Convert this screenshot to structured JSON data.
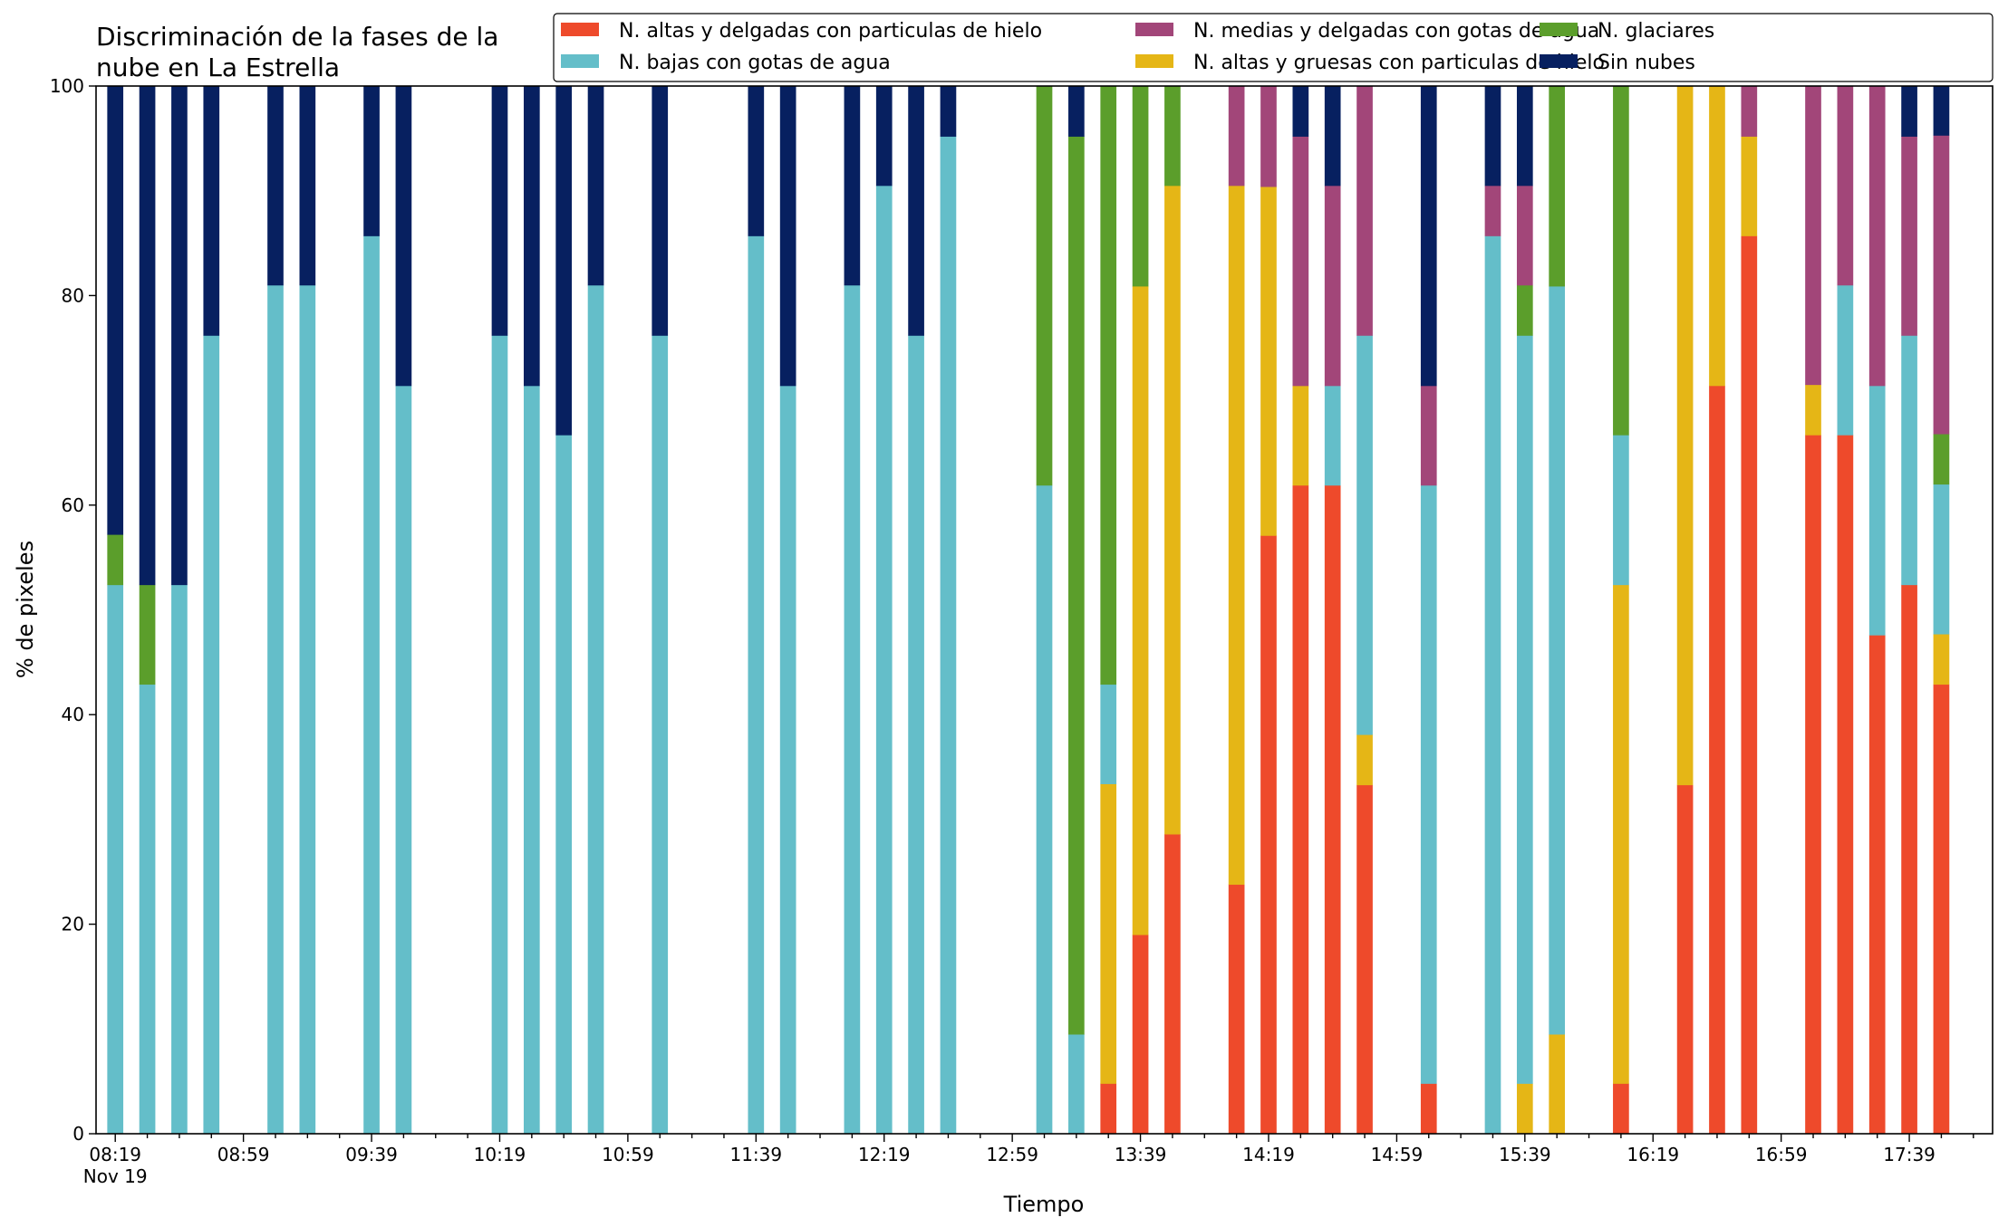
{
  "chart_data": {
    "type": "bar",
    "stacked": true,
    "title_lines": [
      "Discriminación de la fases de la",
      "nube en La Estrella"
    ],
    "xlabel": "Tiempo",
    "ylabel": "% de pixeles",
    "ylim": [
      0,
      100
    ],
    "yticks": [
      0,
      20,
      40,
      60,
      80,
      100
    ],
    "grid": false,
    "legend_position": "top-right",
    "xlim_slots": [
      -0.6,
      58.6
    ],
    "slot_minutes": 10,
    "x_tick_labels": [
      "08:19",
      "08:59",
      "09:39",
      "10:19",
      "10:59",
      "11:39",
      "12:19",
      "12:59",
      "13:39",
      "14:19",
      "14:59",
      "15:39",
      "16:19",
      "16:59",
      "17:39"
    ],
    "x_tick_slots": [
      0,
      4,
      8,
      12,
      16,
      20,
      24,
      28,
      32,
      36,
      40,
      44,
      48,
      52,
      56
    ],
    "x_tick_sublabel": "Nov 19",
    "series": [
      {
        "name": "N. altas y delgadas con particulas de hielo",
        "color": "#ee4a2b"
      },
      {
        "name": "N. altas y gruesas con particulas de hielo",
        "color": "#e5b616"
      },
      {
        "name": "N. bajas con gotas de agua",
        "color": "#64bec9"
      },
      {
        "name": "N. glaciares",
        "color": "#5b9e2b"
      },
      {
        "name": "N. medias y delgadas con gotas de agua",
        "color": "#a24679"
      },
      {
        "name": "Sin nubes",
        "color": "#072060"
      }
    ],
    "legend_order": [
      0,
      2,
      4,
      1,
      3,
      5
    ],
    "bars": [
      {
        "time": "08:19",
        "values": [
          0,
          0,
          52.4,
          4.8,
          0,
          42.8
        ]
      },
      {
        "time": "08:29",
        "values": [
          0,
          0,
          42.9,
          9.5,
          0,
          47.6
        ]
      },
      {
        "time": "08:39",
        "values": [
          0,
          0,
          52.4,
          0,
          0,
          47.6
        ]
      },
      {
        "time": "08:49",
        "values": [
          0,
          0,
          76.2,
          0,
          0,
          23.8
        ]
      },
      {
        "time": "09:09",
        "values": [
          0,
          0,
          81.0,
          0,
          0,
          19.0
        ]
      },
      {
        "time": "09:19",
        "values": [
          0,
          0,
          81.0,
          0,
          0,
          19.0
        ]
      },
      {
        "time": "09:39",
        "values": [
          0,
          0,
          85.7,
          0,
          0,
          14.3
        ]
      },
      {
        "time": "09:49",
        "values": [
          0,
          0,
          71.4,
          0,
          0,
          28.6
        ]
      },
      {
        "time": "10:19",
        "values": [
          0,
          0,
          76.2,
          0,
          0,
          23.8
        ]
      },
      {
        "time": "10:29",
        "values": [
          0,
          0,
          71.4,
          0,
          0,
          28.6
        ]
      },
      {
        "time": "10:39",
        "values": [
          0,
          0,
          66.7,
          0,
          0,
          33.3
        ]
      },
      {
        "time": "10:49",
        "values": [
          0,
          0,
          81.0,
          0,
          0,
          19.0
        ]
      },
      {
        "time": "11:09",
        "values": [
          0,
          0,
          76.2,
          0,
          0,
          23.8
        ]
      },
      {
        "time": "11:39",
        "values": [
          0,
          0,
          85.7,
          0,
          0,
          14.3
        ]
      },
      {
        "time": "11:49",
        "values": [
          0,
          0,
          71.4,
          0,
          0,
          28.6
        ]
      },
      {
        "time": "12:09",
        "values": [
          0,
          0,
          81.0,
          0,
          0,
          19.0
        ]
      },
      {
        "time": "12:19",
        "values": [
          0,
          0,
          90.5,
          0,
          0,
          9.5
        ]
      },
      {
        "time": "12:29",
        "values": [
          0,
          0,
          76.2,
          0,
          0,
          23.8
        ]
      },
      {
        "time": "12:39",
        "values": [
          0,
          0,
          95.2,
          0,
          0,
          4.8
        ]
      },
      {
        "time": "13:09",
        "values": [
          0,
          0,
          61.9,
          38.1,
          0,
          0
        ]
      },
      {
        "time": "13:19",
        "values": [
          0,
          0,
          9.5,
          85.7,
          0,
          4.8
        ]
      },
      {
        "time": "13:29",
        "values": [
          4.8,
          28.6,
          9.5,
          57.1,
          0,
          0
        ]
      },
      {
        "time": "13:39",
        "values": [
          19.0,
          61.9,
          0,
          19.1,
          0,
          0
        ]
      },
      {
        "time": "13:49",
        "values": [
          28.6,
          61.9,
          0,
          9.5,
          0,
          0
        ]
      },
      {
        "time": "14:09",
        "values": [
          23.8,
          66.7,
          0,
          0,
          9.5,
          0
        ]
      },
      {
        "time": "14:19",
        "values": [
          57.1,
          33.3,
          0,
          0,
          9.6,
          0
        ]
      },
      {
        "time": "14:29",
        "values": [
          61.9,
          9.5,
          0,
          0,
          23.8,
          4.8
        ]
      },
      {
        "time": "14:39",
        "values": [
          61.9,
          0,
          9.5,
          0,
          19.1,
          9.5
        ]
      },
      {
        "time": "14:49",
        "values": [
          33.3,
          4.8,
          38.1,
          0,
          23.8,
          0
        ]
      },
      {
        "time": "15:09",
        "values": [
          4.8,
          0,
          57.1,
          0,
          9.5,
          28.6
        ]
      },
      {
        "time": "15:29",
        "values": [
          0,
          0,
          85.7,
          0,
          4.8,
          9.5
        ]
      },
      {
        "time": "15:39",
        "values": [
          0,
          4.8,
          71.4,
          4.8,
          9.5,
          9.5
        ]
      },
      {
        "time": "15:49",
        "values": [
          0,
          9.5,
          71.4,
          19.1,
          0,
          0
        ]
      },
      {
        "time": "16:09",
        "values": [
          4.8,
          47.6,
          14.3,
          33.3,
          0,
          0
        ]
      },
      {
        "time": "16:29",
        "values": [
          33.3,
          66.7,
          0,
          0,
          0,
          0
        ]
      },
      {
        "time": "16:39",
        "values": [
          71.4,
          28.6,
          0,
          0,
          0,
          0
        ]
      },
      {
        "time": "16:49",
        "values": [
          85.7,
          9.5,
          0,
          0,
          4.8,
          0
        ]
      },
      {
        "time": "17:09",
        "values": [
          66.7,
          4.8,
          0,
          0,
          28.5,
          0
        ]
      },
      {
        "time": "17:19",
        "values": [
          66.7,
          0,
          14.3,
          0,
          19.0,
          0
        ]
      },
      {
        "time": "17:29",
        "values": [
          47.6,
          0,
          23.8,
          0,
          28.6,
          0
        ]
      },
      {
        "time": "17:39",
        "values": [
          52.4,
          0,
          23.8,
          0,
          19.0,
          4.8
        ]
      },
      {
        "time": "17:49",
        "values": [
          42.9,
          4.8,
          14.3,
          4.8,
          28.5,
          4.7
        ]
      }
    ]
  }
}
